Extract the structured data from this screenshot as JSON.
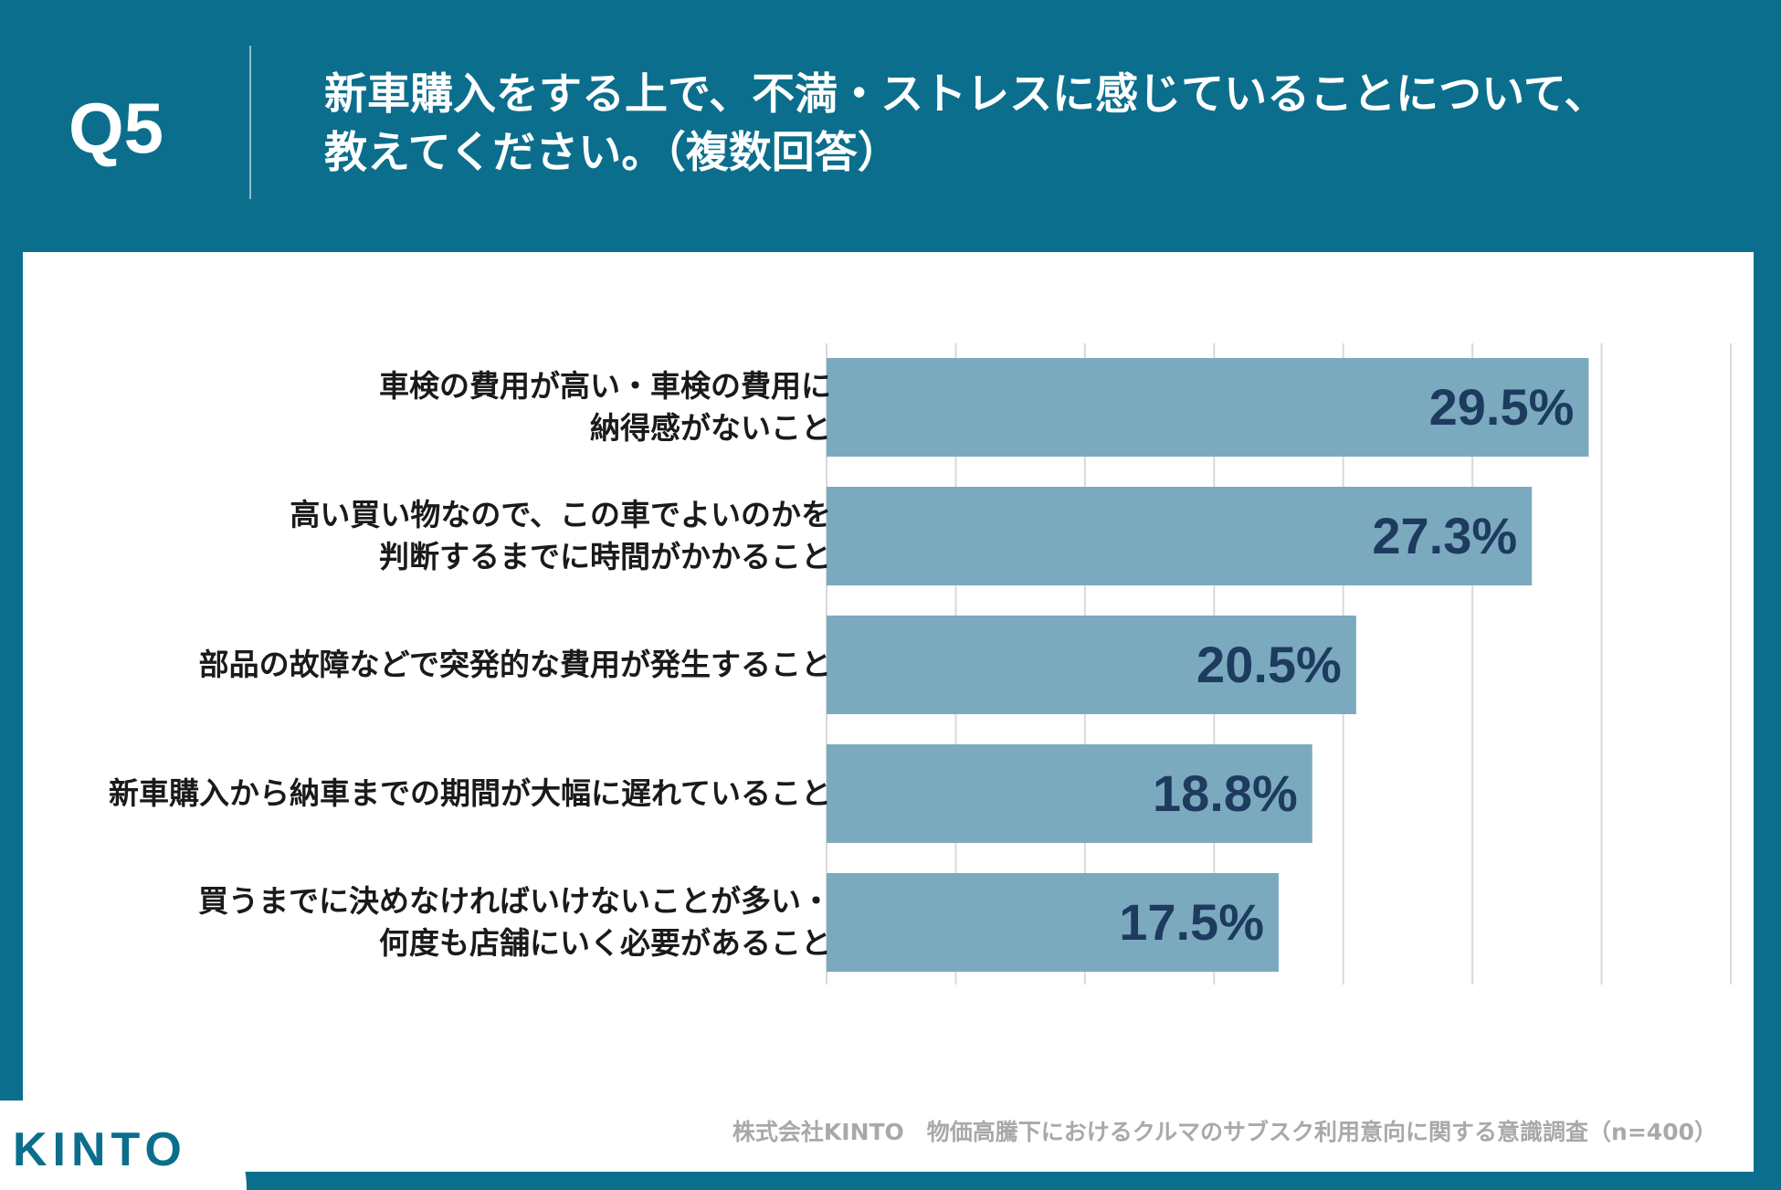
{
  "header": {
    "question_number": "Q5",
    "title_lines": [
      "新車購入をする上で、不満・ストレスに感じていることについて、",
      "教えてください。（複数回答）"
    ]
  },
  "colors": {
    "background": "#0b6e8c",
    "bar": "#7baabe",
    "value_text": "#1d3a5f",
    "grid": "#d9d9d9"
  },
  "chart_data": {
    "type": "bar",
    "orientation": "horizontal",
    "categories": [
      [
        "車検の費用が高い・車検の費用に",
        "納得感がないこと"
      ],
      [
        "高い買い物なので、この車でよいのかを",
        "判断するまでに時間がかかること"
      ],
      [
        "部品の故障などで突発的な費用が発生すること"
      ],
      [
        "新車購入から納車までの期間が大幅に遅れていること"
      ],
      [
        "買うまでに決めなければいけないことが多い・",
        "何度も店舗にいく必要があること"
      ]
    ],
    "values": [
      29.5,
      27.3,
      20.5,
      18.8,
      17.5
    ],
    "value_labels": [
      "29.5%",
      "27.3%",
      "20.5%",
      "18.8%",
      "17.5%"
    ],
    "unit": "%",
    "xlim": [
      0,
      35
    ],
    "grid_step": 5,
    "grid": true,
    "title": "",
    "xlabel": "",
    "ylabel": ""
  },
  "footer": {
    "source": "株式会社KINTO　物価高騰下におけるクルマのサブスク利用意向に関する意識調査（n=400）",
    "logo_text": "KINTO"
  }
}
